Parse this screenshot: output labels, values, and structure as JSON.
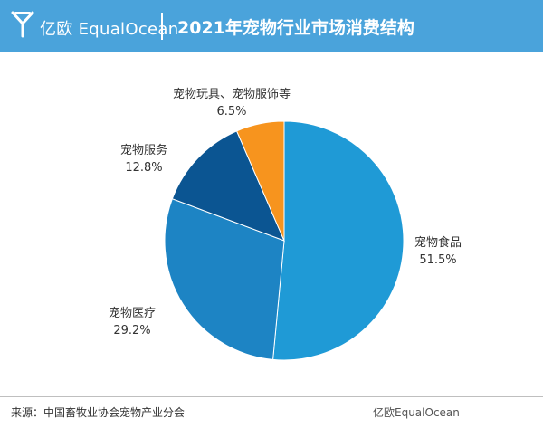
{
  "header": {
    "brand": "亿欧 EqualOcean",
    "title": "2021年宠物行业市场消费结构"
  },
  "chart_data": {
    "type": "pie",
    "title": "2021年宠物行业市场消费结构",
    "start_angle_deg": 0,
    "direction": "clockwise",
    "slices": [
      {
        "name": "宠物食品",
        "value": 51.5,
        "value_label": "51.5%",
        "color": "#1f9ad6"
      },
      {
        "name": "宠物医疗",
        "value": 29.2,
        "value_label": "29.2%",
        "color": "#1d84c4"
      },
      {
        "name": "宠物服务",
        "value": 12.8,
        "value_label": "12.8%",
        "color": "#0b5592"
      },
      {
        "name": "宠物玩具、宠物服饰等",
        "value": 6.5,
        "value_label": "6.5%",
        "color": "#f7941e"
      }
    ]
  },
  "footer": {
    "source": "来源：中国畜牧业协会宠物产业分会",
    "brand": "亿欧EqualOcean"
  },
  "colors": {
    "header_bg": "#4aa3db",
    "header_text": "#ffffff"
  }
}
